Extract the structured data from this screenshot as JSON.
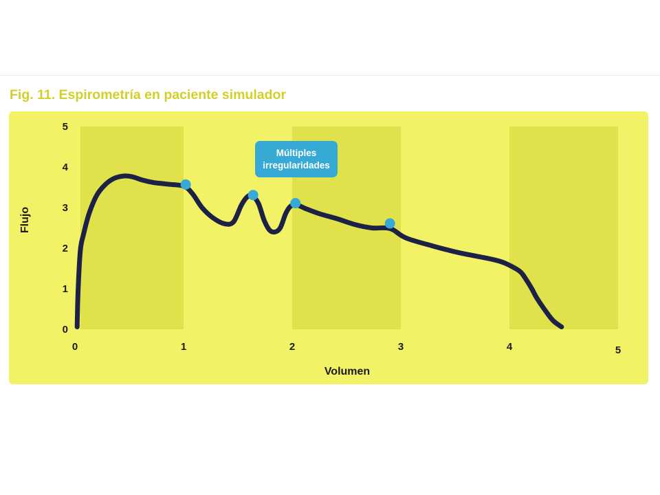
{
  "figure": {
    "title": "Fig. 11. Espirometría en paciente simulador"
  },
  "chart_data": {
    "type": "line",
    "xlabel": "Volumen",
    "ylabel": "Flujo",
    "xlim": [
      0,
      5
    ],
    "ylim": [
      0,
      5
    ],
    "x_ticks": [
      "0",
      "1",
      "2",
      "3",
      "4",
      "5"
    ],
    "y_ticks": [
      "0",
      "1",
      "2",
      "3",
      "4",
      "5"
    ],
    "shaded_x_bands": [
      [
        0.05,
        1.0
      ],
      [
        2.0,
        3.0
      ],
      [
        4.0,
        5.0
      ]
    ],
    "grid": false,
    "series": [
      {
        "x": [
          0.02,
          0.03,
          0.05,
          0.08,
          0.13,
          0.2,
          0.28,
          0.36,
          0.45,
          0.53,
          0.62,
          0.72,
          0.85,
          1.0,
          1.08,
          1.17,
          1.27,
          1.38,
          1.46,
          1.53,
          1.58,
          1.63,
          1.69,
          1.74,
          1.79,
          1.84,
          1.89,
          1.94,
          1.98,
          2.03,
          2.12,
          2.25,
          2.42,
          2.58,
          2.73,
          2.86,
          2.93,
          3.05,
          3.3,
          3.55,
          3.8,
          3.92,
          4.0,
          4.1,
          4.16,
          4.21,
          4.25,
          4.32,
          4.4,
          4.48
        ],
        "y": [
          0.06,
          1.0,
          1.95,
          2.35,
          2.85,
          3.3,
          3.57,
          3.72,
          3.78,
          3.76,
          3.68,
          3.62,
          3.58,
          3.53,
          3.35,
          3.0,
          2.75,
          2.6,
          2.65,
          3.05,
          3.25,
          3.3,
          3.1,
          2.7,
          2.45,
          2.4,
          2.5,
          2.85,
          3.02,
          3.08,
          2.98,
          2.85,
          2.72,
          2.58,
          2.5,
          2.5,
          2.45,
          2.25,
          2.05,
          1.88,
          1.75,
          1.67,
          1.58,
          1.42,
          1.2,
          0.98,
          0.78,
          0.5,
          0.22,
          0.06
        ]
      }
    ],
    "highlight_points": [
      {
        "x": 1.02,
        "y": 3.57
      },
      {
        "x": 1.64,
        "y": 3.31
      },
      {
        "x": 2.03,
        "y": 3.11
      },
      {
        "x": 2.9,
        "y": 2.61
      }
    ],
    "annotation": {
      "lines": [
        "Múltiples",
        "irregularidades"
      ]
    },
    "colors": {
      "panel": "#f2f267",
      "band": "#e0e24b",
      "curve": "#1c2145",
      "marker": "#36a9d4",
      "callout": "#36a9d4",
      "title": "#d2cf2a"
    }
  }
}
